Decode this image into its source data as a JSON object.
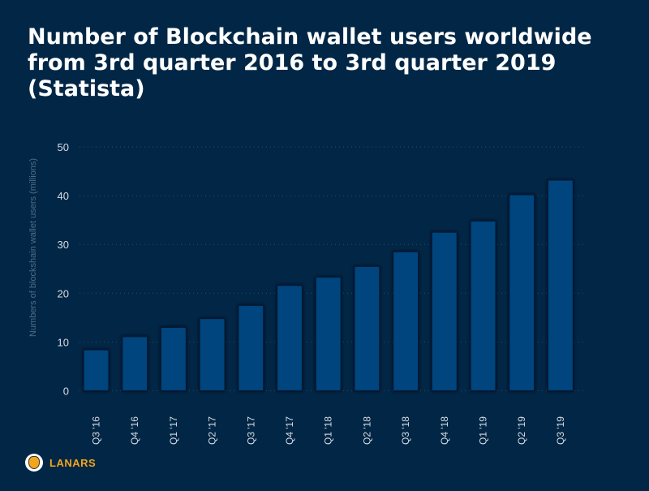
{
  "chart_data": {
    "type": "bar",
    "title": "Number of Blockchain wallet users worldwide from 3rd quarter 2016 to 3rd quarter 2019 (Statista)",
    "xlabel": "",
    "ylabel": "Numbers of blockshain wallet users (millions)",
    "ylim": [
      0,
      50
    ],
    "yticks": [
      0,
      10,
      20,
      30,
      40,
      50
    ],
    "grid": true,
    "categories": [
      "Q3 '16",
      "Q4 '16",
      "Q1 '17",
      "Q2 '17",
      "Q3 '17",
      "Q4 '17",
      "Q1 '18",
      "Q2 '18",
      "Q3 '18",
      "Q4 '18",
      "Q1 '19",
      "Q2 '19",
      "Q3 '19"
    ],
    "values": [
      8.4,
      11.1,
      13.0,
      14.8,
      17.5,
      21.6,
      23.3,
      25.5,
      28.5,
      32.5,
      34.8,
      40.2,
      43.2
    ]
  },
  "colors": {
    "background": "#022746",
    "bar": "#03457e",
    "bar_edge": "#011a33",
    "grid": "#2a4a6a"
  },
  "logo": {
    "text": "LANARS"
  }
}
